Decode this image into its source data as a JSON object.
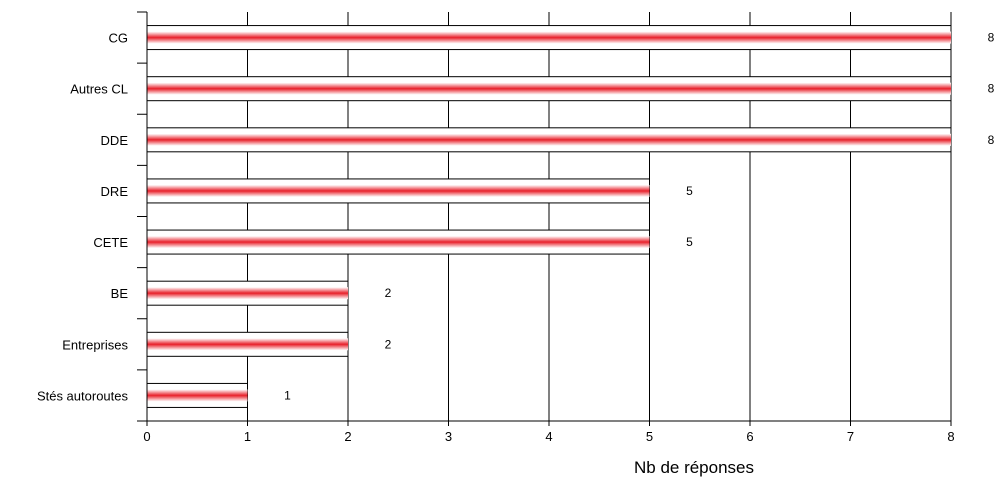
{
  "chart_data": {
    "type": "bar",
    "orientation": "horizontal",
    "categories": [
      "CG",
      "Autres CL",
      "DDE",
      "DRE",
      "CETE",
      "BE",
      "Entreprises",
      "Stés autoroutes"
    ],
    "values": [
      8,
      8,
      8,
      5,
      5,
      2,
      2,
      1
    ],
    "data_labels": [
      "8",
      "8",
      "8",
      "5",
      "5",
      "2",
      "2",
      "1"
    ],
    "xlabel": "Nb de réponses",
    "ylabel": "",
    "xlim": [
      0,
      8
    ],
    "xticks": [
      "0",
      "1",
      "2",
      "3",
      "4",
      "5",
      "6",
      "7",
      "8"
    ],
    "grid": "vertical",
    "legend": "none",
    "bar_fill": "#ffffff",
    "bar_stripe_color": "#e8202a"
  }
}
